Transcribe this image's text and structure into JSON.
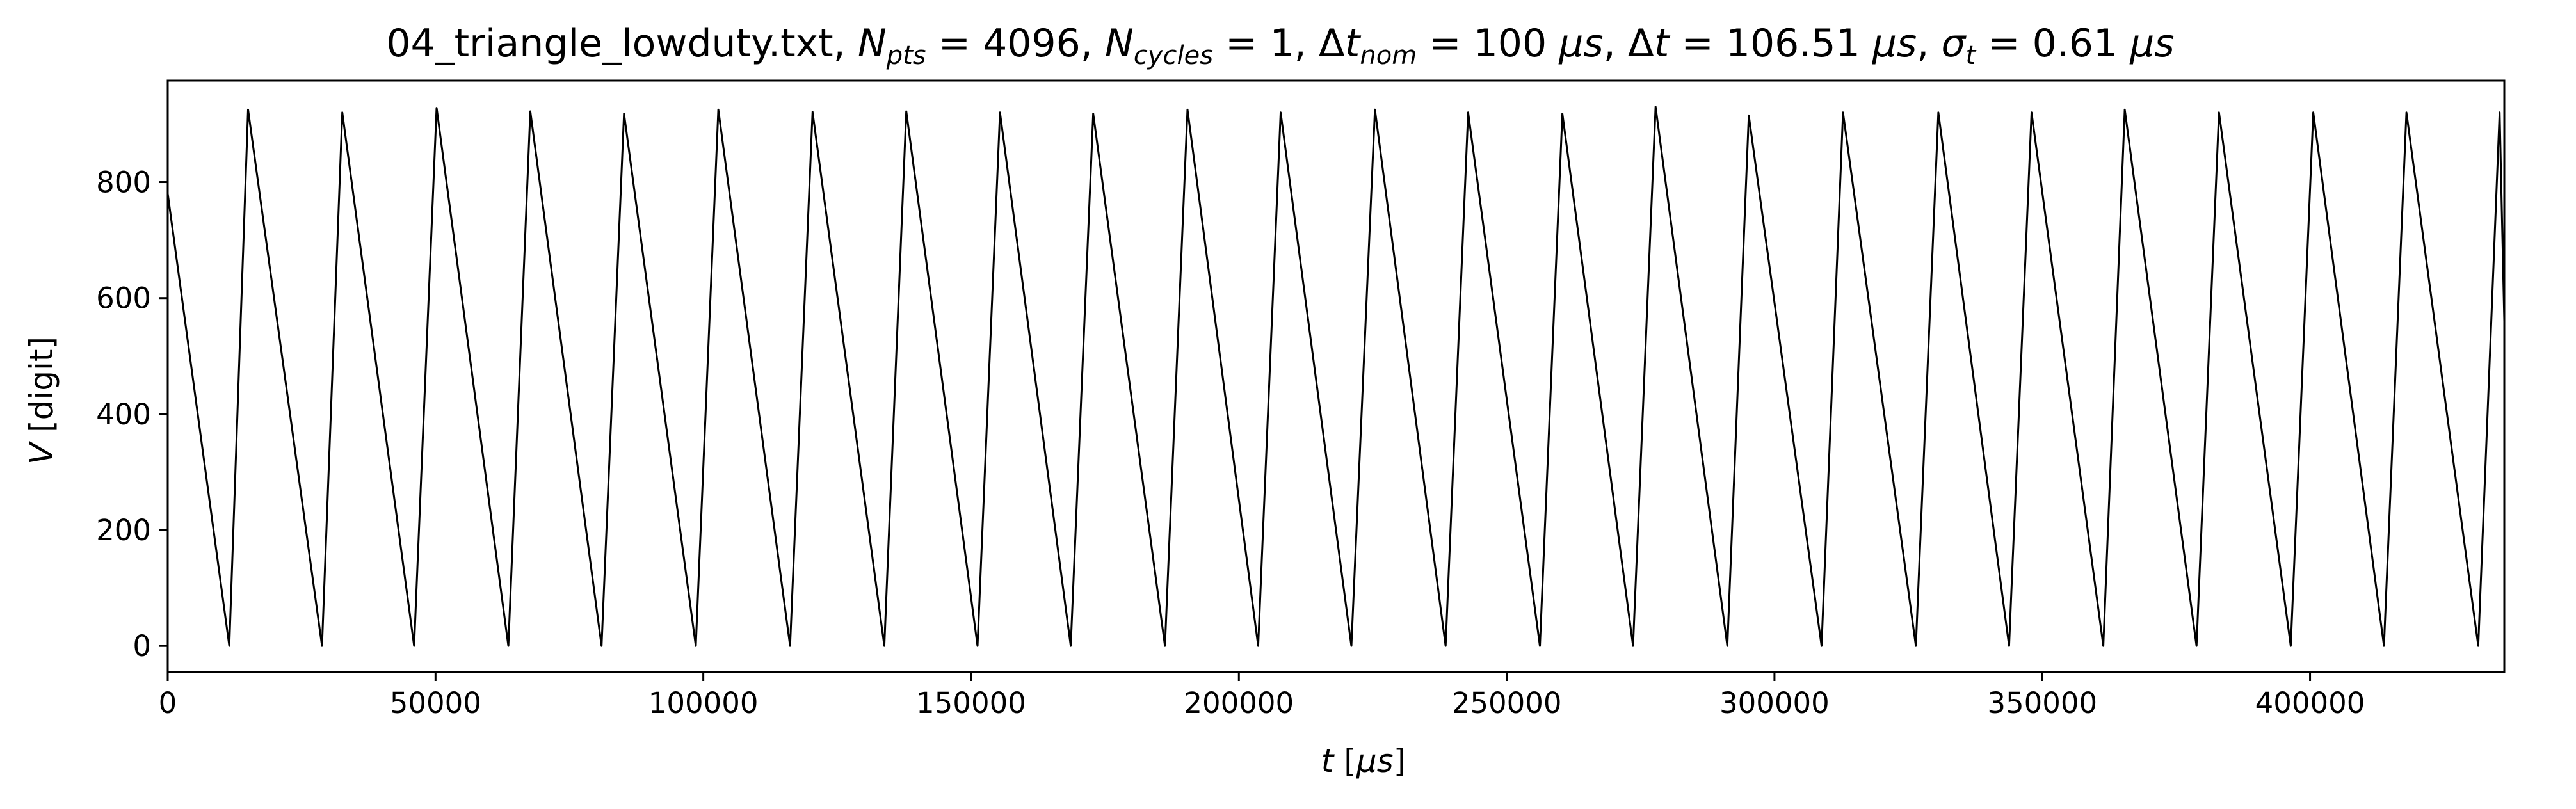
{
  "chart_data": {
    "type": "line",
    "title": {
      "file": "04_triangle_lowduty.txt",
      "npts_sub": "pts",
      "npts_value": "4096",
      "ncycles_sub": "cycles",
      "ncycles_value": "1",
      "dtnom_sub": "nom",
      "dtnom_value": "100",
      "dt_value": "106.51",
      "sigma_sub": "t",
      "sigma_value": "0.61",
      "unit": "μs"
    },
    "xlabel": {
      "var": "t",
      "unit": "μs"
    },
    "ylabel": {
      "var": "V",
      "unit": "digit"
    },
    "xlim": [
      0,
      436270
    ],
    "ylim": [
      -45,
      975
    ],
    "xticks": [
      0,
      50000,
      100000,
      150000,
      200000,
      250000,
      300000,
      350000,
      400000
    ],
    "xtick_labels": [
      "0",
      "50000",
      "100000",
      "150000",
      "200000",
      "250000",
      "300000",
      "350000",
      "400000"
    ],
    "yticks": [
      0,
      200,
      400,
      600,
      800
    ],
    "ytick_labels": [
      "0",
      "200",
      "400",
      "600",
      "800"
    ],
    "grid": false,
    "series": [
      {
        "color": "#000000",
        "x": [
          0,
          11500,
          15000,
          28800,
          32600,
          46000,
          50200,
          63600,
          67700,
          81000,
          85200,
          98600,
          102800,
          116200,
          120400,
          133800,
          137900,
          151200,
          155400,
          168600,
          172800,
          186200,
          190400,
          203600,
          207800,
          221000,
          225400,
          238600,
          242800,
          256200,
          260400,
          273600,
          277800,
          291200,
          295200,
          308800,
          312800,
          326400,
          330600,
          343800,
          348000,
          361400,
          365400,
          378800,
          383000,
          396400,
          400600,
          413800,
          418000,
          431400,
          435400,
          436270
        ],
        "y": [
          780,
          0,
          925,
          0,
          920,
          0,
          928,
          0,
          922,
          0,
          918,
          0,
          925,
          0,
          921,
          0,
          922,
          0,
          920,
          0,
          918,
          0,
          925,
          0,
          920,
          0,
          925,
          0,
          920,
          0,
          918,
          0,
          930,
          0,
          915,
          0,
          920,
          0,
          920,
          0,
          920,
          0,
          925,
          0,
          920,
          0,
          920,
          0,
          920,
          0,
          920,
          560
        ]
      }
    ]
  }
}
